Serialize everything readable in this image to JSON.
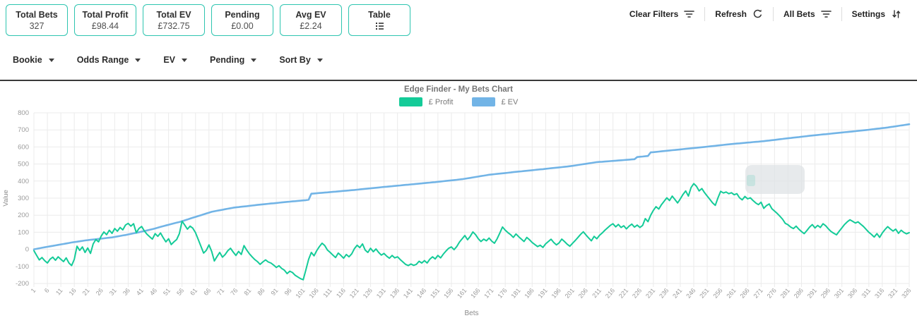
{
  "stats_cards": [
    {
      "label": "Total Bets",
      "value": "327"
    },
    {
      "label": "Total Profit",
      "value": "£98.44"
    },
    {
      "label": "Total EV",
      "value": "£732.75"
    },
    {
      "label": "Pending",
      "value": "£0.00"
    },
    {
      "label": "Avg EV",
      "value": "£2.24"
    },
    {
      "label": "Table",
      "value": "",
      "icon": "table-list-icon"
    }
  ],
  "toolbar": [
    {
      "label": "Clear Filters",
      "icon": "filter-icon"
    },
    {
      "label": "Refresh",
      "icon": "refresh-icon"
    },
    {
      "label": "All Bets",
      "icon": "filter-icon"
    },
    {
      "label": "Settings",
      "icon": "sort-arrows-icon"
    }
  ],
  "filters": [
    {
      "label": "Bookie"
    },
    {
      "label": "Odds Range"
    },
    {
      "label": "EV"
    },
    {
      "label": "Pending"
    },
    {
      "label": "Sort By"
    }
  ],
  "colors": {
    "card_border": "#2ec5b0",
    "profit_line": "#14cb98",
    "ev_line": "#72b4e6",
    "gridline": "#ebebeb",
    "tick_text": "#9b9b9b"
  },
  "chart_data": {
    "type": "line",
    "title": "Edge Finder - My Bets Chart",
    "xlabel": "Bets",
    "ylabel": "Value",
    "ylim": [
      -200,
      800
    ],
    "y_tick_step": 100,
    "x_tick_start": 1,
    "x_tick_step": 5,
    "x_max": 326,
    "grid": true,
    "legend_position": "top",
    "legend": [
      {
        "label": "£ Profit",
        "color": "#14cb98"
      },
      {
        "label": "£ EV",
        "color": "#72b4e6"
      }
    ],
    "series": [
      {
        "name": "£ Profit",
        "color": "#14cb98",
        "values": [
          -8,
          -35,
          -62,
          -48,
          -66,
          -80,
          -58,
          -46,
          -64,
          -44,
          -58,
          -72,
          -50,
          -80,
          -95,
          -58,
          18,
          -6,
          14,
          -18,
          8,
          -24,
          32,
          58,
          44,
          78,
          102,
          86,
          112,
          94,
          122,
          106,
          128,
          114,
          142,
          152,
          136,
          150,
          98,
          122,
          134,
          108,
          88,
          74,
          60,
          92,
          76,
          96,
          68,
          44,
          62,
          28,
          44,
          58,
          92,
          165,
          142,
          118,
          136,
          124,
          98,
          58,
          18,
          -22,
          -6,
          26,
          -12,
          -68,
          -42,
          -18,
          -46,
          -30,
          -8,
          6,
          -16,
          -36,
          -12,
          -30,
          22,
          -4,
          -26,
          -44,
          -60,
          -72,
          -88,
          -74,
          -62,
          -74,
          -80,
          -92,
          -106,
          -96,
          -112,
          -122,
          -142,
          -128,
          -136,
          -152,
          -162,
          -172,
          -178,
          -120,
          -58,
          -18,
          -38,
          -8,
          16,
          36,
          22,
          -4,
          -18,
          -34,
          -48,
          -22,
          -36,
          -52,
          -30,
          -44,
          -26,
          4,
          24,
          10,
          32,
          -4,
          -18,
          6,
          -14,
          2,
          -18,
          -34,
          -24,
          -40,
          -52,
          -36,
          -50,
          -44,
          -60,
          -74,
          -88,
          -95,
          -86,
          -94,
          -88,
          -70,
          -80,
          -66,
          -80,
          -58,
          -44,
          -56,
          -36,
          -50,
          -28,
          -10,
          6,
          14,
          -2,
          16,
          42,
          62,
          81,
          56,
          76,
          102,
          86,
          62,
          46,
          60,
          50,
          66,
          48,
          36,
          62,
          96,
          131,
          112,
          98,
          86,
          70,
          90,
          74,
          60,
          46,
          70,
          56,
          40,
          28,
          16,
          24,
          11,
          32,
          46,
          59,
          40,
          26,
          38,
          60,
          46,
          30,
          18,
          36,
          52,
          70,
          88,
          103,
          84,
          66,
          50,
          76,
          62,
          82,
          96,
          112,
          126,
          140,
          150,
          132,
          146,
          128,
          138,
          120,
          136,
          148,
          130,
          142,
          128,
          140,
          180,
          162,
          200,
          228,
          250,
          236,
          262,
          282,
          302,
          286,
          312,
          292,
          272,
          296,
          322,
          342,
          312,
          362,
          385,
          370,
          342,
          356,
          332,
          312,
          292,
          272,
          258,
          302,
          340,
          330,
          336,
          326,
          332,
          320,
          326,
          302,
          290,
          310,
          296,
          302,
          286,
          272,
          262,
          276,
          240,
          256,
          266,
          238,
          224,
          210,
          194,
          176,
          152,
          144,
          130,
          122,
          136,
          118,
          104,
          92,
          110,
          130,
          145,
          125,
          140,
          128,
          150,
          138,
          120,
          104,
          94,
          85,
          106,
          126,
          146,
          161,
          173,
          164,
          154,
          161,
          147,
          134,
          117,
          100,
          87,
          72,
          92,
          70,
          96,
          116,
          133,
          119,
          107,
          118,
          94,
          112,
          99,
          91,
          98
        ]
      },
      {
        "name": "£ EV",
        "color": "#72b4e6",
        "anchors": [
          [
            1,
            0
          ],
          [
            5,
            12
          ],
          [
            10,
            26
          ],
          [
            15,
            40
          ],
          [
            20,
            52
          ],
          [
            25,
            61
          ],
          [
            30,
            70
          ],
          [
            35,
            84
          ],
          [
            40,
            100
          ],
          [
            45,
            118
          ],
          [
            50,
            140
          ],
          [
            55,
            160
          ],
          [
            60,
            185
          ],
          [
            67,
            220
          ],
          [
            75,
            244
          ],
          [
            85,
            262
          ],
          [
            95,
            278
          ],
          [
            102,
            288
          ],
          [
            103,
            291
          ],
          [
            104,
            326
          ],
          [
            110,
            334
          ],
          [
            120,
            348
          ],
          [
            130,
            364
          ],
          [
            140,
            379
          ],
          [
            150,
            394
          ],
          [
            160,
            411
          ],
          [
            170,
            437
          ],
          [
            180,
            454
          ],
          [
            190,
            470
          ],
          [
            200,
            487
          ],
          [
            210,
            511
          ],
          [
            224,
            528
          ],
          [
            225,
            541
          ],
          [
            229,
            547
          ],
          [
            230,
            568
          ],
          [
            240,
            584
          ],
          [
            250,
            600
          ],
          [
            260,
            617
          ],
          [
            272,
            634
          ],
          [
            280,
            649
          ],
          [
            290,
            667
          ],
          [
            300,
            683
          ],
          [
            310,
            699
          ],
          [
            318,
            714
          ],
          [
            326,
            733
          ]
        ]
      }
    ]
  }
}
